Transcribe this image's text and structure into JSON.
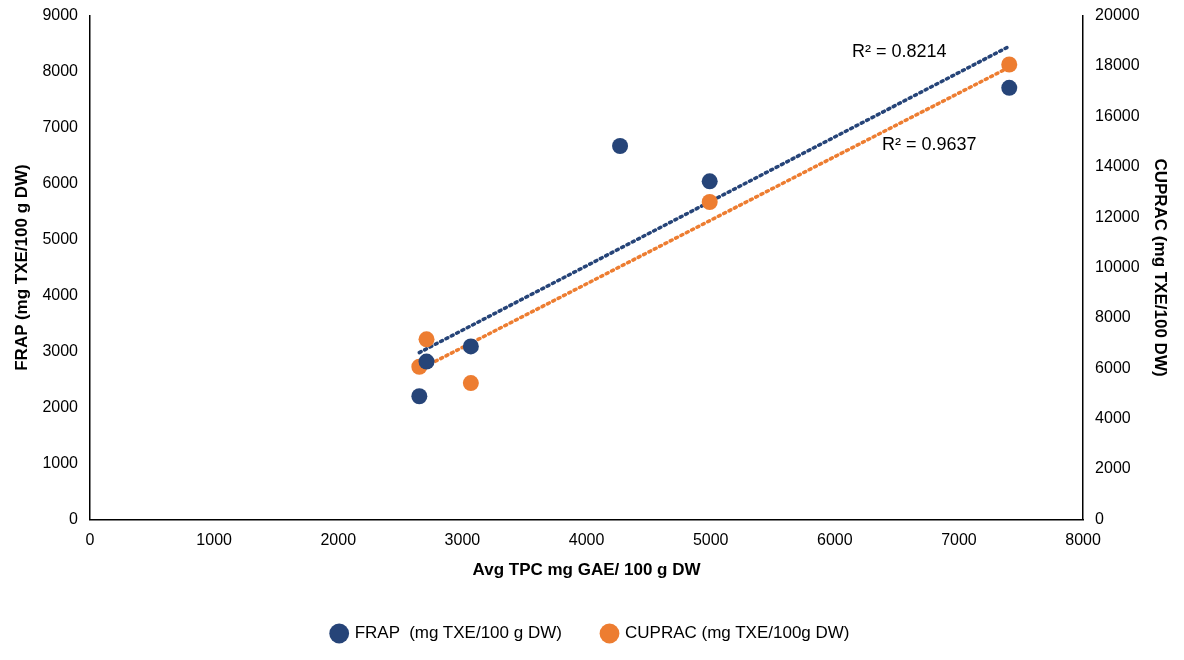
{
  "chart_data": {
    "type": "scatter",
    "xlabel": "Avg TPC mg GAE/ 100 g DW",
    "ylabel": "FRAP (mg TXE/100 g DW)",
    "y2label": "CUPRAC (mg TXE/100 DW)",
    "xlim": [
      0,
      8000
    ],
    "xticks": [
      0,
      1000,
      2000,
      3000,
      4000,
      5000,
      6000,
      7000,
      8000
    ],
    "ylim": [
      0,
      9000
    ],
    "yticks": [
      0,
      1000,
      2000,
      3000,
      4000,
      5000,
      6000,
      7000,
      8000,
      9000
    ],
    "y2lim": [
      0,
      20000
    ],
    "y2ticks": [
      0,
      2000,
      4000,
      6000,
      8000,
      10000,
      12000,
      14000,
      16000,
      18000,
      20000
    ],
    "grid": false,
    "legend": "bottom",
    "marker": "circle",
    "series": [
      {
        "name": "FRAP  (mg TXE/100 g DW)",
        "color": "#264478",
        "x": [
          2653,
          2711,
          3068,
          4270,
          4992,
          7405
        ],
        "values": [
          2200,
          2820,
          3090,
          6670,
          6040,
          7710
        ]
      },
      {
        "name": "CUPRAC (mg TXE/100g DW)",
        "axis": "y2",
        "color": "#ed7d31",
        "x": [
          2653,
          2711,
          3068,
          4992,
          7405
        ],
        "values": [
          6060,
          7150,
          5410,
          12600,
          18060
        ]
      },
      {
        "type": "line",
        "color": "#264478",
        "marker": "none",
        "line_style": "dotted",
        "x": [
          2653,
          7405
        ],
        "values": [
          2980,
          8450
        ]
      },
      {
        "type": "line",
        "axis": "y2",
        "color": "#ed7d31",
        "marker": "none",
        "line_style": "dotted",
        "x": [
          2653,
          7405
        ],
        "values": [
          5950,
          17950
        ]
      }
    ],
    "annotations": [
      "R² = 0.8214",
      "R² = 0.9637"
    ]
  }
}
